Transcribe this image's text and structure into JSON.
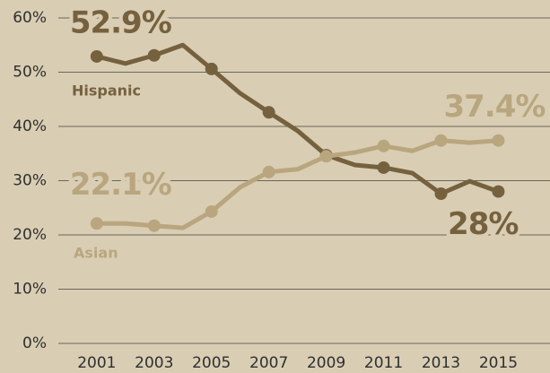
{
  "chart_data": {
    "type": "line",
    "x": [
      2001,
      2002,
      2003,
      2004,
      2005,
      2006,
      2007,
      2008,
      2009,
      2010,
      2011,
      2012,
      2013,
      2014,
      2015
    ],
    "series": [
      {
        "name": "Hispanic",
        "color": "#76613f",
        "values": [
          52.9,
          51.6,
          53.1,
          55.0,
          50.6,
          46.1,
          42.6,
          39.2,
          34.7,
          32.9,
          32.4,
          31.4,
          27.6,
          29.9,
          28
        ],
        "value_labels": [
          "52.9%",
          null,
          null,
          null,
          null,
          null,
          null,
          null,
          null,
          null,
          null,
          null,
          null,
          null,
          "28%"
        ]
      },
      {
        "name": "Asian",
        "color": "#b9a67f",
        "values": [
          22.1,
          22.1,
          21.7,
          21.3,
          24.3,
          28.8,
          31.6,
          32.1,
          34.5,
          35.2,
          36.4,
          35.5,
          37.4,
          37.0,
          37.4
        ],
        "value_labels": [
          "22.1%",
          null,
          null,
          null,
          null,
          null,
          null,
          null,
          null,
          null,
          null,
          null,
          null,
          null,
          "37.4%"
        ]
      }
    ],
    "xlim": [
      1999.66,
      2016.8
    ],
    "xticks": [
      2001,
      2003,
      2005,
      2007,
      2009,
      2011,
      2013,
      2015
    ],
    "ylim": [
      0,
      60
    ],
    "yticks": [
      {
        "value": 0,
        "label": "0%"
      },
      {
        "value": 10,
        "label": "10%"
      },
      {
        "value": 20,
        "label": "20%"
      },
      {
        "value": 30,
        "label": "30%"
      },
      {
        "value": 40,
        "label": "40%"
      },
      {
        "value": 50,
        "label": "50%"
      },
      {
        "value": 60,
        "label": "60%"
      }
    ],
    "grid": true
  }
}
